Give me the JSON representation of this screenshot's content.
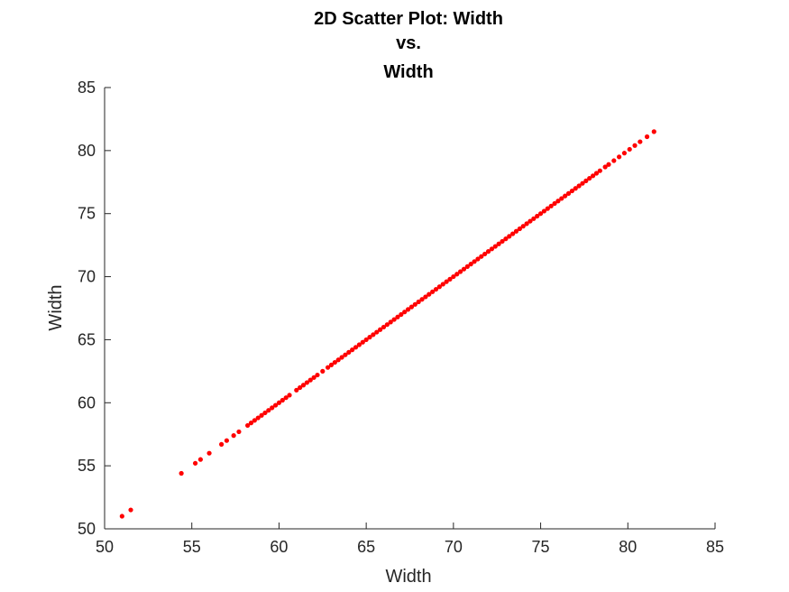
{
  "chart_data": {
    "type": "scatter",
    "title": [
      "2D Scatter Plot: Width",
      "vs.",
      "Width"
    ],
    "xlabel": "Width",
    "ylabel": "Width",
    "xlim": [
      50,
      85
    ],
    "ylim": [
      50,
      85
    ],
    "xticks": [
      50,
      55,
      60,
      65,
      70,
      75,
      80,
      85
    ],
    "yticks": [
      50,
      55,
      60,
      65,
      70,
      75,
      80,
      85
    ],
    "grid": false,
    "marker_color": "#ff0000",
    "series": [
      {
        "values_rule": "y equals x",
        "x": [
          51.0,
          51.5,
          54.4,
          55.2,
          55.5,
          56.0,
          56.7,
          57.0,
          57.4,
          57.7,
          58.2,
          58.4,
          58.6,
          58.8,
          59.0,
          59.2,
          59.4,
          59.6,
          59.8,
          60.0,
          60.2,
          60.4,
          60.6,
          61.0,
          61.2,
          61.4,
          61.6,
          61.8,
          62.0,
          62.2,
          62.5,
          62.8,
          63.0,
          63.2,
          63.4,
          63.6,
          63.8,
          64.0,
          64.2,
          64.4,
          64.6,
          64.8,
          65.0,
          65.2,
          65.4,
          65.6,
          65.8,
          66.0,
          66.2,
          66.4,
          66.6,
          66.8,
          67.0,
          67.2,
          67.4,
          67.6,
          67.8,
          68.0,
          68.2,
          68.4,
          68.6,
          68.8,
          69.0,
          69.2,
          69.4,
          69.6,
          69.8,
          70.0,
          70.2,
          70.4,
          70.6,
          70.8,
          71.0,
          71.2,
          71.4,
          71.6,
          71.8,
          72.0,
          72.2,
          72.4,
          72.6,
          72.8,
          73.0,
          73.2,
          73.4,
          73.6,
          73.8,
          74.0,
          74.2,
          74.4,
          74.6,
          74.8,
          75.0,
          75.2,
          75.4,
          75.6,
          75.8,
          76.0,
          76.2,
          76.4,
          76.6,
          76.8,
          77.0,
          77.2,
          77.4,
          77.6,
          77.8,
          78.0,
          78.2,
          78.4,
          78.7,
          78.9,
          79.2,
          79.5,
          79.8,
          80.1,
          80.4,
          80.7,
          81.1,
          81.5
        ],
        "y": [
          51.0,
          51.5,
          54.4,
          55.2,
          55.5,
          56.0,
          56.7,
          57.0,
          57.4,
          57.7,
          58.2,
          58.4,
          58.6,
          58.8,
          59.0,
          59.2,
          59.4,
          59.6,
          59.8,
          60.0,
          60.2,
          60.4,
          60.6,
          61.0,
          61.2,
          61.4,
          61.6,
          61.8,
          62.0,
          62.2,
          62.5,
          62.8,
          63.0,
          63.2,
          63.4,
          63.6,
          63.8,
          64.0,
          64.2,
          64.4,
          64.6,
          64.8,
          65.0,
          65.2,
          65.4,
          65.6,
          65.8,
          66.0,
          66.2,
          66.4,
          66.6,
          66.8,
          67.0,
          67.2,
          67.4,
          67.6,
          67.8,
          68.0,
          68.2,
          68.4,
          68.6,
          68.8,
          69.0,
          69.2,
          69.4,
          69.6,
          69.8,
          70.0,
          70.2,
          70.4,
          70.6,
          70.8,
          71.0,
          71.2,
          71.4,
          71.6,
          71.8,
          72.0,
          72.2,
          72.4,
          72.6,
          72.8,
          73.0,
          73.2,
          73.4,
          73.6,
          73.8,
          74.0,
          74.2,
          74.4,
          74.6,
          74.8,
          75.0,
          75.2,
          75.4,
          75.6,
          75.8,
          76.0,
          76.2,
          76.4,
          76.6,
          76.8,
          77.0,
          77.2,
          77.4,
          77.6,
          77.8,
          78.0,
          78.2,
          78.4,
          78.7,
          78.9,
          79.2,
          79.5,
          79.8,
          80.1,
          80.4,
          80.7,
          81.1,
          81.5
        ]
      }
    ]
  }
}
